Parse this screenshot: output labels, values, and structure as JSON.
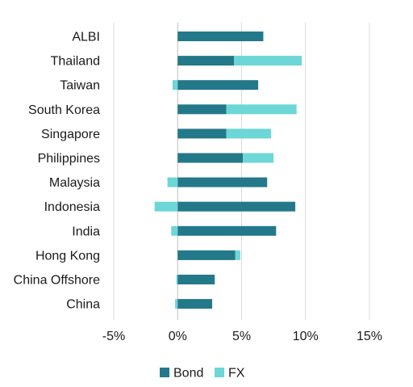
{
  "chart_data": {
    "type": "bar",
    "orientation": "horizontal",
    "stacked": true,
    "categories": [
      "ALBI",
      "Thailand",
      "Taiwan",
      "South Korea",
      "Singapore",
      "Philippines",
      "Malaysia",
      "Indonesia",
      "India",
      "Hong Kong",
      "China Offshore",
      "China"
    ],
    "series": [
      {
        "name": "Bond",
        "color": "#23798a",
        "values": [
          6.7,
          4.4,
          6.3,
          3.8,
          3.8,
          5.1,
          7.0,
          9.2,
          7.7,
          4.5,
          2.9,
          2.7
        ]
      },
      {
        "name": "FX",
        "color": "#6dd6d6",
        "values": [
          0.0,
          5.3,
          -0.4,
          5.5,
          3.5,
          2.4,
          -0.8,
          -1.8,
          -0.5,
          0.4,
          -0.1,
          -0.2
        ]
      }
    ],
    "xlim": [
      -5,
      15
    ],
    "xticks": [
      -5,
      0,
      5,
      10,
      15
    ],
    "xtick_labels": [
      "-5%",
      "0%",
      "5%",
      "10%",
      "15%"
    ],
    "grid": "vertical",
    "legend_position": "bottom"
  }
}
